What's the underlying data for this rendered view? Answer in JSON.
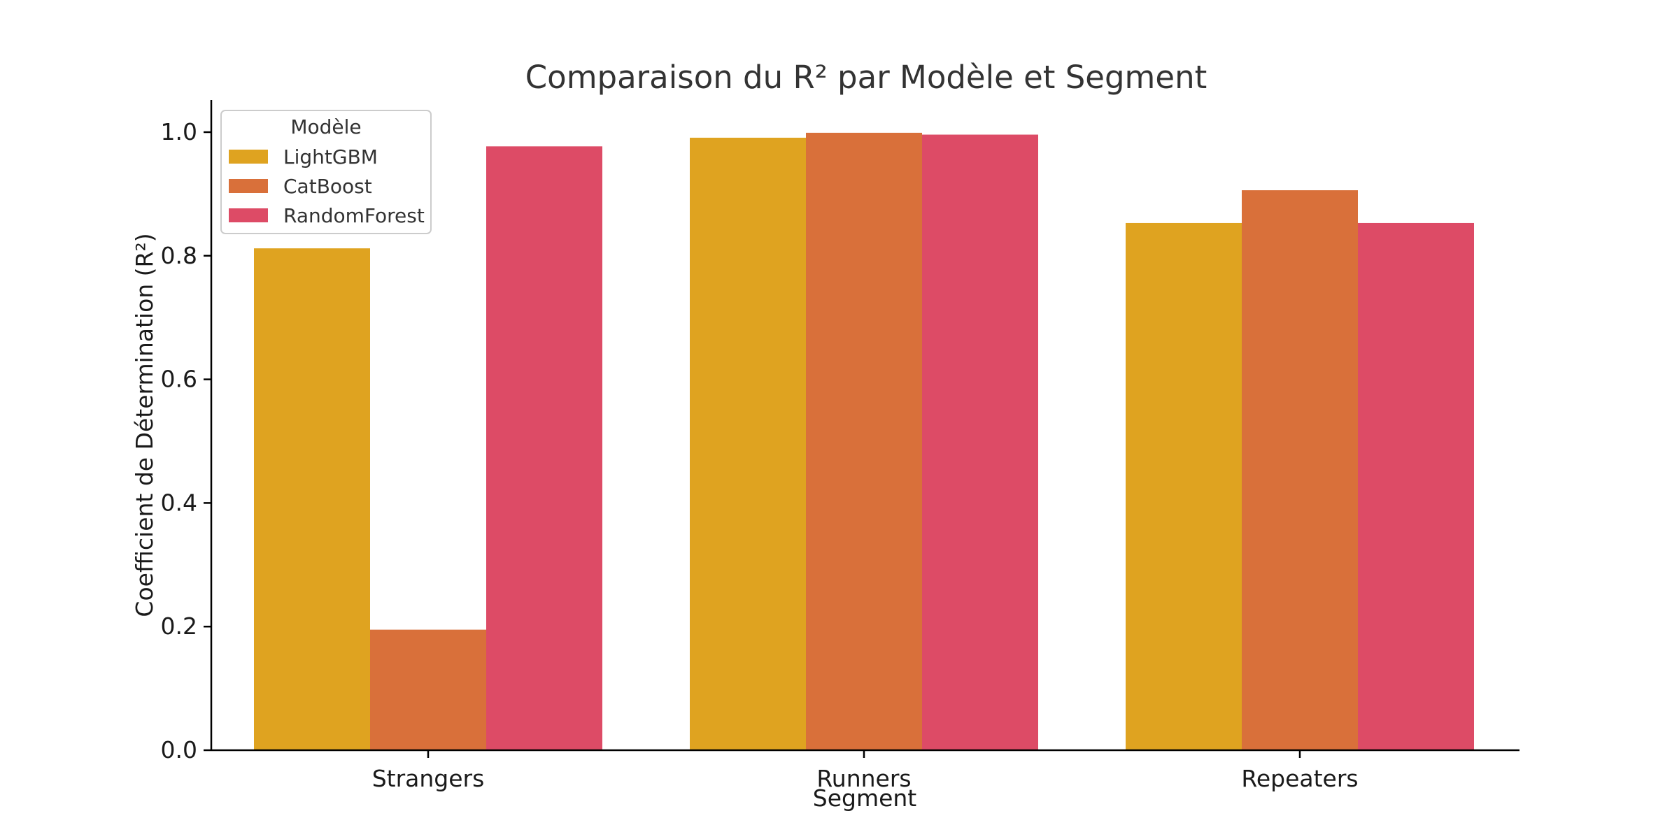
{
  "chart_data": {
    "type": "bar",
    "title": "Comparaison du R² par Modèle et Segment",
    "xlabel": "Segment",
    "ylabel": "Coefficient de Détermination (R²)",
    "categories": [
      "Strangers",
      "Runners",
      "Repeaters"
    ],
    "ylim": [
      0,
      1.05
    ],
    "yticks": [
      0.0,
      0.2,
      0.4,
      0.6,
      0.8,
      1.0
    ],
    "ytick_labels": [
      "0.0",
      "0.2",
      "0.4",
      "0.6",
      "0.8",
      "1.0"
    ],
    "legend": {
      "title": "Modèle",
      "position": "top-left"
    },
    "series": [
      {
        "name": "LightGBM",
        "color": "#DFA320",
        "values": [
          0.812,
          0.991,
          0.853
        ]
      },
      {
        "name": "CatBoost",
        "color": "#D9703A",
        "values": [
          0.195,
          0.999,
          0.906
        ]
      },
      {
        "name": "RandomForest",
        "color": "#DD4B66",
        "values": [
          0.977,
          0.996,
          0.853
        ]
      }
    ],
    "grid": false
  }
}
